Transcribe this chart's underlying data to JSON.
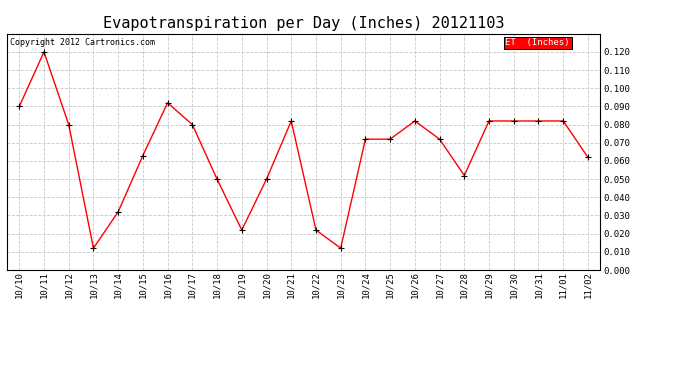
{
  "title": "Evapotranspiration per Day (Inches) 20121103",
  "copyright_text": "Copyright 2012 Cartronics.com",
  "legend_label": "ET  (Inches)",
  "dates": [
    "10/10",
    "10/11",
    "10/12",
    "10/13",
    "10/14",
    "10/15",
    "10/16",
    "10/17",
    "10/18",
    "10/19",
    "10/20",
    "10/21",
    "10/22",
    "10/23",
    "10/24",
    "10/25",
    "10/26",
    "10/27",
    "10/28",
    "10/29",
    "10/30",
    "10/31",
    "11/01",
    "11/02"
  ],
  "values": [
    0.09,
    0.12,
    0.08,
    0.012,
    0.032,
    0.063,
    0.092,
    0.08,
    0.05,
    0.022,
    0.05,
    0.082,
    0.022,
    0.012,
    0.072,
    0.072,
    0.082,
    0.072,
    0.052,
    0.082,
    0.082,
    0.082,
    0.082,
    0.062
  ],
  "line_color": "#ff0000",
  "marker_color": "#000000",
  "background_color": "#ffffff",
  "grid_color": "#c8c8c8",
  "ylim": [
    0.0,
    0.13
  ],
  "yticks": [
    0.0,
    0.01,
    0.02,
    0.03,
    0.04,
    0.05,
    0.06,
    0.07,
    0.08,
    0.09,
    0.1,
    0.11,
    0.12
  ],
  "legend_bg": "#ff0000",
  "legend_text_color": "#ffffff",
  "title_fontsize": 11,
  "tick_fontsize": 6.5,
  "copyright_fontsize": 6
}
